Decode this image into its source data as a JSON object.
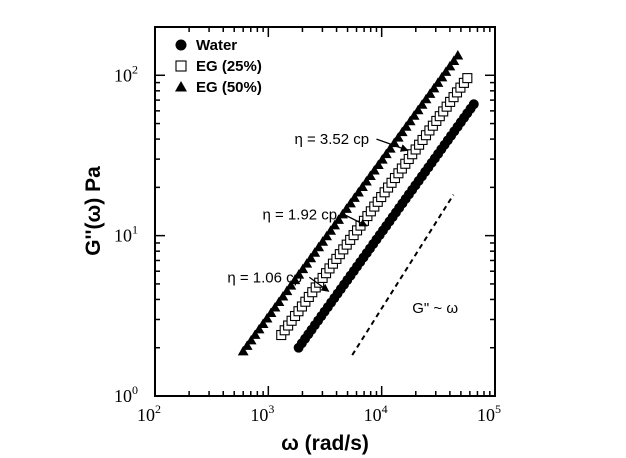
{
  "chart_data": {
    "type": "scatter",
    "xscale": "log",
    "yscale": "log",
    "xlim": [
      100,
      100000
    ],
    "ylim": [
      1,
      200
    ],
    "xlabel": "ω (rad/s)",
    "ylabel": "G''(ω) Pa",
    "x_ticks": [
      {
        "value": 100,
        "base": "10",
        "exp": "2"
      },
      {
        "value": 1000,
        "base": "10",
        "exp": "3"
      },
      {
        "value": 10000,
        "base": "10",
        "exp": "4"
      },
      {
        "value": 100000,
        "base": "10",
        "exp": "5"
      }
    ],
    "y_ticks": [
      {
        "value": 1,
        "base": "10",
        "exp": "0"
      },
      {
        "value": 10,
        "base": "10",
        "exp": "1"
      },
      {
        "value": 100,
        "base": "10",
        "exp": "2"
      }
    ],
    "grid": false,
    "legend_position": "top-left",
    "series": [
      {
        "name": "Water",
        "marker": "filled-circle",
        "color": "#000000",
        "x_start": 1850,
        "x_end": 65000,
        "y_start": 2.0,
        "y_end": 66,
        "points": 55
      },
      {
        "name": "EG (25%)",
        "marker": "open-square",
        "color": "#000000",
        "x_start": 1300,
        "x_end": 57000,
        "y_start": 2.4,
        "y_end": 96,
        "points": 55
      },
      {
        "name": "EG (50%)",
        "marker": "filled-triangle",
        "color": "#000000",
        "x_start": 600,
        "x_end": 47000,
        "y_start": 1.9,
        "y_end": 133,
        "points": 55
      }
    ],
    "reference_line": {
      "label": "G\" ~ ω",
      "style": "dashed",
      "x": [
        5500,
        43000
      ],
      "y": [
        1.8,
        18
      ]
    },
    "annotations": [
      {
        "text": "η = 3.52 cp",
        "target_series": "EG (50%)",
        "arrow_from": [
          9000,
          40
        ],
        "arrow_to": [
          17000,
          34
        ]
      },
      {
        "text": "η = 1.92 cp",
        "target_series": "EG (25%)",
        "arrow_from": [
          4700,
          13.5
        ],
        "arrow_to": [
          7400,
          11.5
        ]
      },
      {
        "text": "η = 1.06 cp",
        "target_series": "Water",
        "arrow_from": [
          2300,
          5.5
        ],
        "arrow_to": [
          3400,
          4.5
        ]
      }
    ]
  }
}
